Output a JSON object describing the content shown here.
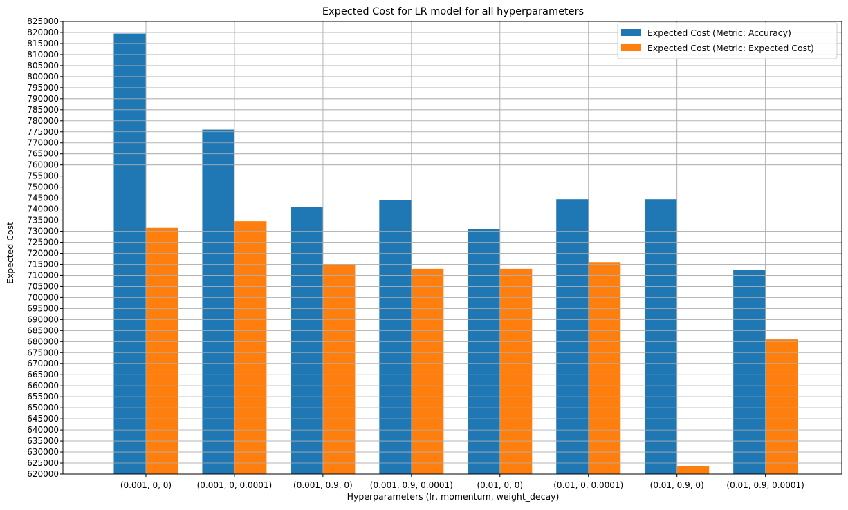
{
  "chart_data": {
    "type": "bar",
    "title": "Expected Cost for LR model for all hyperparameters",
    "xlabel": "Hyperparameters (lr, momentum, weight_decay)",
    "ylabel": "Expected Cost",
    "ylim": [
      620000,
      825000
    ],
    "ytick_step": 5000,
    "grid": true,
    "legend_position": "top-right",
    "categories": [
      "(0.001, 0, 0)",
      "(0.001, 0, 0.0001)",
      "(0.001, 0.9, 0)",
      "(0.001, 0.9, 0.0001)",
      "(0.01, 0, 0)",
      "(0.01, 0, 0.0001)",
      "(0.01, 0.9, 0)",
      "(0.01, 0.9, 0.0001)"
    ],
    "series": [
      {
        "name": "Expected Cost (Metric: Accuracy)",
        "color": "#1f77b4",
        "values": [
          819500,
          776000,
          741000,
          744000,
          731000,
          744500,
          744500,
          712500
        ]
      },
      {
        "name": "Expected Cost (Metric: Expected Cost)",
        "color": "#ff7f0e",
        "values": [
          731500,
          734500,
          715000,
          713000,
          713000,
          716000,
          623500,
          681000
        ]
      }
    ]
  }
}
